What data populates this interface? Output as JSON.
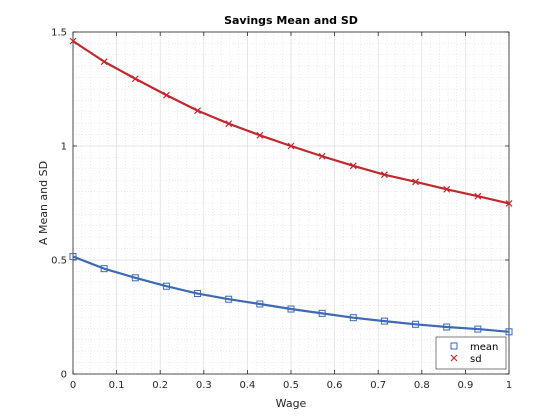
{
  "chart_data": {
    "type": "line",
    "title": "Savings Mean and SD",
    "xlabel": "Wage",
    "ylabel": "A Mean and SD",
    "xlim": [
      0,
      1
    ],
    "ylim": [
      0,
      1.5
    ],
    "xticks": [
      "0",
      "0.1",
      "0.2",
      "0.3",
      "0.4",
      "0.5",
      "0.6",
      "0.7",
      "0.8",
      "0.9",
      "1"
    ],
    "yticks": [
      "0",
      "0.5",
      "1",
      "1.5"
    ],
    "grid": true,
    "minor_grid": true,
    "legend_position": "bottom-right",
    "x": [
      0,
      0.0714,
      0.1429,
      0.2143,
      0.2857,
      0.3571,
      0.4286,
      0.5,
      0.5714,
      0.6429,
      0.7143,
      0.7857,
      0.8571,
      0.9286,
      1.0
    ],
    "series": [
      {
        "name": "mean",
        "marker": "square",
        "color": "#3d6ab0",
        "values": [
          0.515,
          0.462,
          0.422,
          0.385,
          0.353,
          0.328,
          0.307,
          0.285,
          0.266,
          0.247,
          0.232,
          0.218,
          0.206,
          0.197,
          0.185
        ]
      },
      {
        "name": "sd",
        "marker": "x",
        "color": "#c1272d",
        "values": [
          1.46,
          1.37,
          1.295,
          1.223,
          1.155,
          1.098,
          1.047,
          1.0,
          0.955,
          0.913,
          0.874,
          0.843,
          0.81,
          0.78,
          0.748
        ]
      }
    ]
  }
}
